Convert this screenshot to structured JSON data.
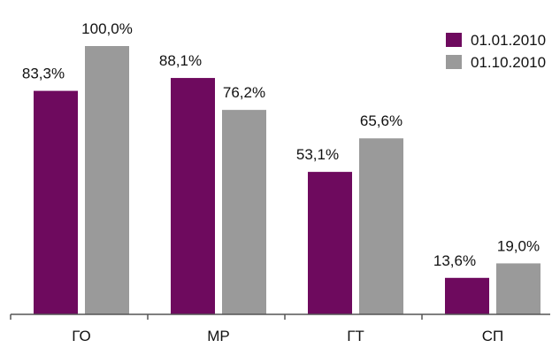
{
  "chart_data": {
    "type": "bar",
    "title": "",
    "xlabel": "",
    "ylabel": "",
    "categories": [
      "ГО",
      "МР",
      "ГТ",
      "СП"
    ],
    "series": [
      {
        "name": "01.01.2010",
        "color": "#6e0a5e",
        "values": [
          83.3,
          88.1,
          53.1,
          13.6
        ],
        "labels": [
          "83,3%",
          "88,1%",
          "53,1%",
          "13,6%"
        ]
      },
      {
        "name": "01.10.2010",
        "color": "#9a9a9a",
        "values": [
          100.0,
          76.2,
          65.6,
          19.0
        ],
        "labels": [
          "100,0%",
          "76,2%",
          "65,6%",
          "19,0%"
        ]
      }
    ],
    "ylim": [
      0,
      100
    ],
    "grid": false,
    "legend_position": "top-right"
  }
}
